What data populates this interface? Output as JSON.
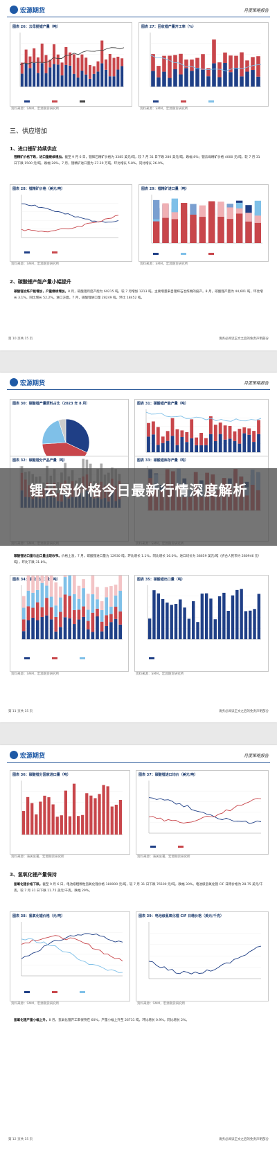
{
  "header": {
    "logo": "宏源期货",
    "right": "月度策略报告"
  },
  "p1": {
    "fig26": {
      "title": "图表 26：云母提锂产量（吨）",
      "source": "资料来源：SMM，宏源期货研究所"
    },
    "fig27": {
      "title": "图表 27：回收锂产量开工率（%）",
      "source": "资料来源：SMM，宏源期货研究所"
    },
    "section3": "三、供应增加",
    "sub1": "1、进口锂矿持续供应",
    "para1": {
      "lead": "锂精矿价格下跌，进口量继续增加。",
      "text": "截至 9 月 6 日，锂辉石精矿价格为 3385 美元/吨，较 7 月 31 日下跌 280 美元/吨，跌幅 8%；锂云母精矿价格 4000 元/吨，较 7 月 31 日下跌 1500 元/吨，跌幅 28%。7 月，锂精矿进口量为 37.20 万吨，环比增长 5.8%，同比增长 26.9%。"
    },
    "fig28": {
      "title": "图表 28：锂精矿价格（美元/吨）",
      "source": "资料来源：SMM，宏源期货研究所"
    },
    "fig29": {
      "title": "图表 29：锂精矿进口量（吨）",
      "source": "资料来源：SMM，宏源期货研究所"
    },
    "sub2": "2、碳酸锂产能产量小幅提升",
    "para2": {
      "lead": "碳酸锂冶炼产能增加，产量继续增加。",
      "text": "8 月，碳酸锂月度产能为 60215 吨，较 7 月增加 1213 吨。主要增量来自锂辉石冶炼端的投产。8 月，碳酸锂产量为 44,601 吨，环比增长 3.1%，同比增长 52.2%。进口方面，7 月，碳酸锂进口量 28249 吨，环比 18452 吨。"
    },
    "footer": {
      "left": "第 10 页共 15 页",
      "right": "请务必阅读正文之后的免责声明部分"
    }
  },
  "p2": {
    "fig30": {
      "title": "图表 30：碳酸锂产量原料占比（2023 年 8 月）",
      "source": "资料来源：SMM，宏源期货研究所"
    },
    "fig31": {
      "title": "图表 31：碳酸锂产能产量（吨）",
      "source": "资料来源：SMM，宏源期货研究所"
    },
    "fig32": {
      "title": "图表 32：碳酸锂分产品产量（吨）",
      "source": "资料来源：SMM，宏源期货研究所"
    },
    "fig33": {
      "title": "图表 33：碳酸锂库存产量（吨）",
      "source": "资料来源：SMM，宏源期货研究所"
    },
    "para": {
      "lead": "碳酸锂进口量与出口量出现收窄。",
      "text": "价格上涨，7 月，碳酸锂进口量为 12930 吨，环比增长 1.1%，同比增长 16.0%。进口均价为 38659 美元/吨（折合人民币约 280946 元/吨），环比下跌 31.8%。"
    },
    "fig34": {
      "title": "图表 34：碳酸锂进口量（吨）",
      "source": "资料来源：SMM，宏源期货研究所"
    },
    "fig35": {
      "title": "图表 35：碳酸锂出口量（吨）",
      "source": "资料来源：SMM，宏源期货研究所"
    },
    "footer": {
      "left": "第 11 页共 15 页",
      "right": "请务必阅读正文之后的免责声明部分"
    }
  },
  "banner": {
    "title": "锂云母价格今日最新行情深度解析"
  },
  "p3": {
    "fig36": {
      "title": "图表 36：碳酸锂分国家进口量（吨）",
      "source": "资料来源：海关总署，宏源期货研究所"
    },
    "fig37": {
      "title": "图表 37：碳酸锂进口均价（美元/吨）",
      "source": "资料来源：海关总署，宏源期货研究所"
    },
    "sub3": "3、氢氧化锂产量保持",
    "para3": {
      "lead": "氢氧化锂价格下跌。",
      "text": "截至 9 月 6 日，电池级粗颗粒氢氧化锂价格 180000 元/吨，较 7 月 31 日下跌 76500 元/吨，跌幅 30%。电池级氢氧化锂 CIF 日韩价格为 28.75 美元/千克，较 7 月 31 日下跌 11.75 美元/千克，跌幅 29%。"
    },
    "fig38": {
      "title": "图表 38：氢氧化锂价格（元/吨）",
      "source": "资料来源：SMM，宏源期货研究所"
    },
    "fig39": {
      "title": "图表 39：电池级氢氧化锂 CIF 日韩价格（美元/千克）",
      "source": "资料来源：SMM，宏源期货研究所"
    },
    "para4": {
      "lead": "氢氧化锂产量小幅上升。",
      "text": "8 月，氢氧化锂开工率保持在 60%，产量小幅上升至 26731 吨，环比增长 0.9%，同比增长 2%。"
    },
    "footer": {
      "left": "第 12 页共 15 页",
      "right": "请务必阅读正文之后的免责声明部分"
    }
  },
  "colors": {
    "navy": "#1f3f86",
    "red": "#c8464b",
    "pink": "#e8a0a4",
    "blue": "#2a5fb0",
    "lightblue": "#7fc0e8"
  }
}
